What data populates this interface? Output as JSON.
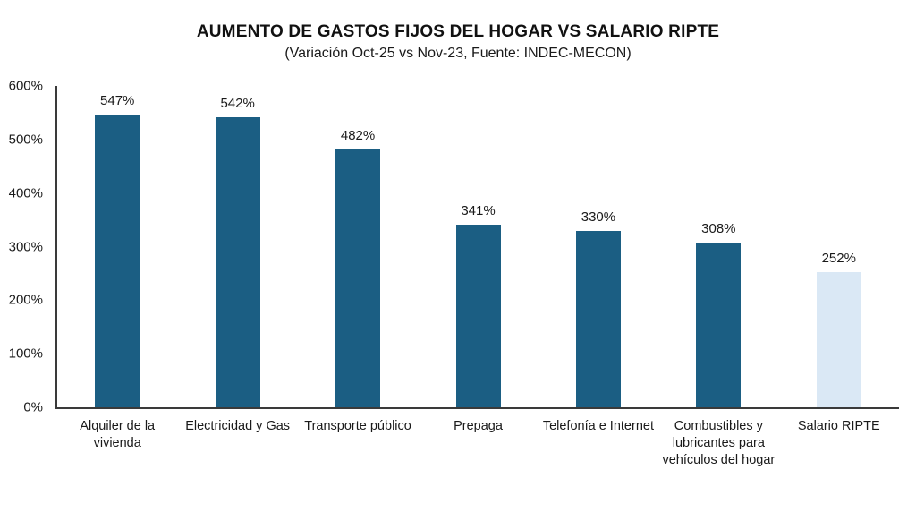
{
  "chart": {
    "title": "AUMENTO DE GASTOS FIJOS DEL HOGAR VS SALARIO RIPTE",
    "subtitle": "(Variación Oct-25 vs Nov-23, Fuente: INDEC-MECON)"
  },
  "chart_data": {
    "type": "bar",
    "title": "AUMENTO DE GASTOS FIJOS DEL HOGAR VS SALARIO RIPTE",
    "subtitle": "(Variación Oct-25 vs Nov-23, Fuente: INDEC-MECON)",
    "categories": [
      "Alquiler de la vivienda",
      "Electricidad y Gas",
      "Transporte público",
      "Prepaga",
      "Telefonía e Internet",
      "Combustibles y lubricantes para vehículos del hogar",
      "Salario RIPTE"
    ],
    "values": [
      547,
      542,
      482,
      341,
      330,
      308,
      252
    ],
    "data_labels": [
      "547%",
      "542%",
      "482%",
      "341%",
      "330%",
      "308%",
      "252%"
    ],
    "bar_colors": [
      "#1B5E83",
      "#1B5E83",
      "#1B5E83",
      "#1B5E83",
      "#1B5E83",
      "#1B5E83",
      "#DAE8F5"
    ],
    "xlabel": "",
    "ylabel": "",
    "ylim": [
      0,
      600
    ],
    "ytick_step": 100,
    "ytick_labels": [
      "0%",
      "100%",
      "200%",
      "300%",
      "400%",
      "500%",
      "600%"
    ],
    "grid": false,
    "legend": false,
    "colors": {
      "bar_dark": "#1B5E83",
      "bar_light": "#DAE8F5",
      "axis": "#3a3a3a",
      "text": "#1a1a1a"
    }
  }
}
